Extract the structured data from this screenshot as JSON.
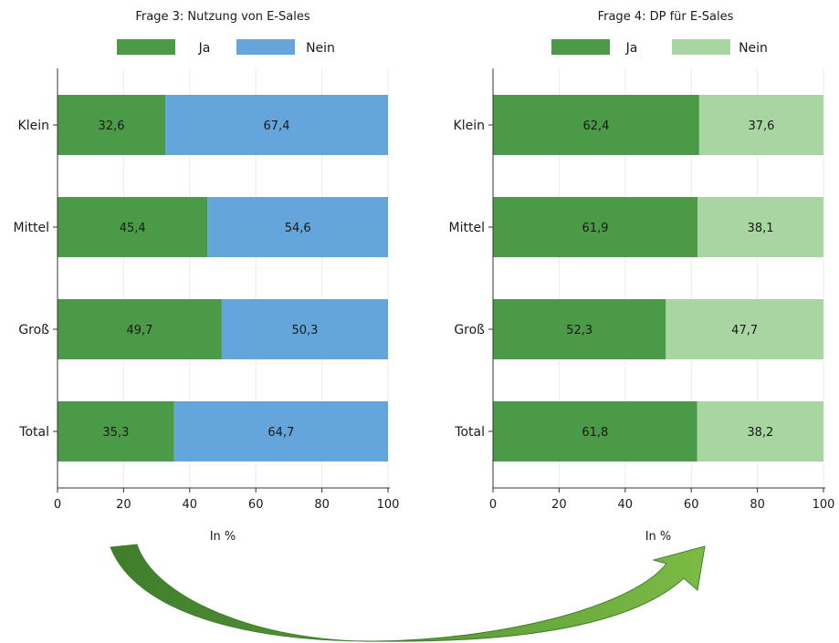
{
  "charts": [
    {
      "type": "bar",
      "orientation": "horizontal",
      "stacked": true,
      "title": "Frage 3: Nutzung von E-Sales",
      "categories": [
        "Klein",
        "Mittel",
        "Groß",
        "Total"
      ],
      "series": [
        {
          "name": "Ja",
          "color": "#4a9a48",
          "values": [
            32.6,
            45.4,
            49.7,
            35.3
          ],
          "labels": [
            "32,6",
            "45,4",
            "49,7",
            "35,3"
          ]
        },
        {
          "name": "Nein",
          "color": "#64a5db",
          "values": [
            67.4,
            54.6,
            50.3,
            64.7
          ],
          "labels": [
            "67,4",
            "54,6",
            "50,3",
            "64,7"
          ]
        }
      ],
      "xlabel": "In %",
      "xlim": [
        0,
        100
      ],
      "xticks": [
        "0",
        "20",
        "40",
        "60",
        "80",
        "100"
      ],
      "grid": true,
      "legend_position": "top"
    },
    {
      "type": "bar",
      "orientation": "horizontal",
      "stacked": true,
      "title": "Frage 4: DP für E-Sales",
      "categories": [
        "Klein",
        "Mittel",
        "Groß",
        "Total"
      ],
      "series": [
        {
          "name": "Ja",
          "color": "#4a9a48",
          "values": [
            62.4,
            61.9,
            52.3,
            61.8
          ],
          "labels": [
            "62,4",
            "61,9",
            "52,3",
            "61,8"
          ]
        },
        {
          "name": "Nein",
          "color": "#a8d5a2",
          "values": [
            37.6,
            38.1,
            47.7,
            38.2
          ],
          "labels": [
            "37,6",
            "38,1",
            "47,7",
            "38,2"
          ]
        }
      ],
      "xlabel": "In %",
      "xlim": [
        0,
        100
      ],
      "xticks": [
        "0",
        "20",
        "40",
        "60",
        "80",
        "100"
      ],
      "grid": true,
      "legend_position": "top"
    }
  ],
  "decoration": {
    "arrow": "curved-arrow-left-to-right",
    "arrow_colors": [
      "#3f7d2c",
      "#7dbb45"
    ]
  }
}
